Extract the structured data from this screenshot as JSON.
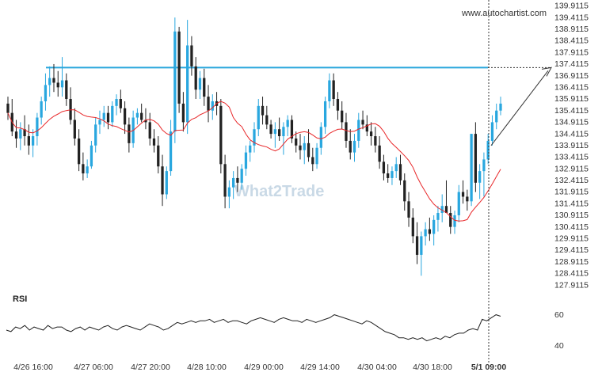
{
  "brand": "www.autochartist.com",
  "watermark": "What2Trade",
  "chart_data": {
    "type": "candlestick",
    "y_ticks": [
      "139.9115",
      "139.4115",
      "138.9115",
      "138.4115",
      "137.9115",
      "137.4115",
      "136.9115",
      "136.4115",
      "135.9115",
      "135.4115",
      "134.9115",
      "134.4115",
      "133.9115",
      "133.4115",
      "132.9115",
      "132.4115",
      "131.9115",
      "131.4115",
      "130.9115",
      "130.4115",
      "129.9115",
      "129.4115",
      "128.9115",
      "128.4115",
      "127.9115"
    ],
    "ylim": [
      127.7,
      139.95
    ],
    "x_ticks": [
      "4/26 16:00",
      "4/27 06:00",
      "4/27 20:00",
      "4/28 10:00",
      "4/29 00:00",
      "4/29 14:00",
      "4/30 04:00",
      "4/30 18:00",
      "5/1 09:00"
    ],
    "resistance_level": 137.25,
    "breakout_marker_label": "5/1 09:00",
    "colors": {
      "up": "#29a7df",
      "down": "#222222",
      "ma": "#e8282a",
      "level": "#2aa6dc",
      "rsi": "#222222"
    },
    "candles_ohlc": [
      [
        135.7,
        136.0,
        135.0,
        135.3
      ],
      [
        135.3,
        135.9,
        134.3,
        134.5
      ],
      [
        134.5,
        135.0,
        133.8,
        134.2
      ],
      [
        134.2,
        134.9,
        133.7,
        134.6
      ],
      [
        134.6,
        135.2,
        133.9,
        134.3
      ],
      [
        134.3,
        134.8,
        133.5,
        133.9
      ],
      [
        133.9,
        134.6,
        133.4,
        134.3
      ],
      [
        134.3,
        135.3,
        133.9,
        135.1
      ],
      [
        135.1,
        136.0,
        134.8,
        135.8
      ],
      [
        135.8,
        137.0,
        135.4,
        136.5
      ],
      [
        136.5,
        137.3,
        136.0,
        136.8
      ],
      [
        136.8,
        137.4,
        136.2,
        136.6
      ],
      [
        136.6,
        137.1,
        136.0,
        136.4
      ],
      [
        136.4,
        137.7,
        136.0,
        136.7
      ],
      [
        136.7,
        137.0,
        135.6,
        135.9
      ],
      [
        135.9,
        136.4,
        134.8,
        135.0
      ],
      [
        135.0,
        135.5,
        133.9,
        134.2
      ],
      [
        134.2,
        134.6,
        132.8,
        133.1
      ],
      [
        133.1,
        133.6,
        132.4,
        132.7
      ],
      [
        132.7,
        133.3,
        132.5,
        133.0
      ],
      [
        133.0,
        134.1,
        132.9,
        133.9
      ],
      [
        133.9,
        135.1,
        133.6,
        134.8
      ],
      [
        134.8,
        135.4,
        134.4,
        135.0
      ],
      [
        135.0,
        135.6,
        134.7,
        135.3
      ],
      [
        135.3,
        135.6,
        134.6,
        134.9
      ],
      [
        134.9,
        135.8,
        134.7,
        135.6
      ],
      [
        135.6,
        136.1,
        135.2,
        135.9
      ],
      [
        135.9,
        136.3,
        135.3,
        135.5
      ],
      [
        135.5,
        135.8,
        134.4,
        134.8
      ],
      [
        134.8,
        135.1,
        133.6,
        134.0
      ],
      [
        134.0,
        135.4,
        133.8,
        135.1
      ],
      [
        135.1,
        135.5,
        134.8,
        135.3
      ],
      [
        135.3,
        135.7,
        134.9,
        135.0
      ],
      [
        135.0,
        135.5,
        134.6,
        134.9
      ],
      [
        134.9,
        135.3,
        133.9,
        134.2
      ],
      [
        134.2,
        134.6,
        133.6,
        133.9
      ],
      [
        133.9,
        134.3,
        132.7,
        133.0
      ],
      [
        133.0,
        133.5,
        131.3,
        131.8
      ],
      [
        131.8,
        133.0,
        131.6,
        132.8
      ],
      [
        132.8,
        135.0,
        132.6,
        134.5
      ],
      [
        134.5,
        139.4,
        134.0,
        138.8
      ],
      [
        138.8,
        139.0,
        135.3,
        135.7
      ],
      [
        135.7,
        136.2,
        134.5,
        134.9
      ],
      [
        134.9,
        139.3,
        134.4,
        138.2
      ],
      [
        138.2,
        138.6,
        136.9,
        137.3
      ],
      [
        137.3,
        137.7,
        135.9,
        136.3
      ],
      [
        136.3,
        137.1,
        135.9,
        136.8
      ],
      [
        136.8,
        137.2,
        135.6,
        136.0
      ],
      [
        136.0,
        136.5,
        134.9,
        135.4
      ],
      [
        135.4,
        136.1,
        135.0,
        135.8
      ],
      [
        135.8,
        136.2,
        135.2,
        135.6
      ],
      [
        135.6,
        135.9,
        132.7,
        133.1
      ],
      [
        133.1,
        133.5,
        131.2,
        131.7
      ],
      [
        131.7,
        132.4,
        131.2,
        132.1
      ],
      [
        132.1,
        132.8,
        131.6,
        132.5
      ],
      [
        132.5,
        133.0,
        131.9,
        132.3
      ],
      [
        132.3,
        133.1,
        132.0,
        132.9
      ],
      [
        132.9,
        133.9,
        132.6,
        133.6
      ],
      [
        133.6,
        134.1,
        133.2,
        133.9
      ],
      [
        133.9,
        134.9,
        133.6,
        134.6
      ],
      [
        134.6,
        135.9,
        134.3,
        135.6
      ],
      [
        135.6,
        136.0,
        134.8,
        135.2
      ],
      [
        135.2,
        135.6,
        134.6,
        134.8
      ],
      [
        134.8,
        135.0,
        134.2,
        134.4
      ],
      [
        134.4,
        134.9,
        133.8,
        134.6
      ],
      [
        134.6,
        135.1,
        134.1,
        134.3
      ],
      [
        134.3,
        134.9,
        133.5,
        134.7
      ],
      [
        134.7,
        135.2,
        134.3,
        135.0
      ],
      [
        135.0,
        135.2,
        134.0,
        134.2
      ],
      [
        134.2,
        134.5,
        133.6,
        133.9
      ],
      [
        133.9,
        134.4,
        133.3,
        133.7
      ],
      [
        133.7,
        134.3,
        133.1,
        134.0
      ],
      [
        134.0,
        134.6,
        133.2,
        133.4
      ],
      [
        133.4,
        133.8,
        132.8,
        133.1
      ],
      [
        133.1,
        134.0,
        132.9,
        133.8
      ],
      [
        133.8,
        134.9,
        133.5,
        134.7
      ],
      [
        134.7,
        136.0,
        134.4,
        135.8
      ],
      [
        135.8,
        137.0,
        135.5,
        136.7
      ],
      [
        136.7,
        137.0,
        135.6,
        135.9
      ],
      [
        135.9,
        136.2,
        135.0,
        135.4
      ],
      [
        135.4,
        135.8,
        134.6,
        134.9
      ],
      [
        134.9,
        135.3,
        133.8,
        134.1
      ],
      [
        134.1,
        134.6,
        133.3,
        133.6
      ],
      [
        133.6,
        134.4,
        133.2,
        134.1
      ],
      [
        134.1,
        135.3,
        133.8,
        135.0
      ],
      [
        135.0,
        135.4,
        134.6,
        134.8
      ],
      [
        134.8,
        135.2,
        134.3,
        134.5
      ],
      [
        134.5,
        134.9,
        133.9,
        134.3
      ],
      [
        134.3,
        134.7,
        133.6,
        133.9
      ],
      [
        133.9,
        134.3,
        132.9,
        133.2
      ],
      [
        133.2,
        133.5,
        132.4,
        132.7
      ],
      [
        132.7,
        133.1,
        132.3,
        132.5
      ],
      [
        132.5,
        133.0,
        132.2,
        132.8
      ],
      [
        132.8,
        133.4,
        132.5,
        133.1
      ],
      [
        133.1,
        133.5,
        132.2,
        132.4
      ],
      [
        132.4,
        132.7,
        131.1,
        131.5
      ],
      [
        131.5,
        131.9,
        130.4,
        130.8
      ],
      [
        130.8,
        131.2,
        129.7,
        130.0
      ],
      [
        130.0,
        130.6,
        128.8,
        129.2
      ],
      [
        129.2,
        130.2,
        128.3,
        130.0
      ],
      [
        130.0,
        130.6,
        129.6,
        130.3
      ],
      [
        130.3,
        130.8,
        129.8,
        130.1
      ],
      [
        130.1,
        130.9,
        129.6,
        130.7
      ],
      [
        130.7,
        131.3,
        130.2,
        131.0
      ],
      [
        131.0,
        131.8,
        130.6,
        131.3
      ],
      [
        131.3,
        132.4,
        131.0,
        131.0
      ],
      [
        131.0,
        131.3,
        130.1,
        130.4
      ],
      [
        130.4,
        131.1,
        130.1,
        130.9
      ],
      [
        130.9,
        132.2,
        130.6,
        131.9
      ],
      [
        131.9,
        132.4,
        131.4,
        131.7
      ],
      [
        131.7,
        132.0,
        131.1,
        131.5
      ],
      [
        131.5,
        134.4,
        131.3,
        134.4
      ],
      [
        134.4,
        134.9,
        131.9,
        132.3
      ],
      [
        132.3,
        133.1,
        131.6,
        132.8
      ],
      [
        132.8,
        133.6,
        131.7,
        133.3
      ],
      [
        133.3,
        134.4,
        133.1,
        134.1
      ],
      [
        134.1,
        135.2,
        133.9,
        134.9
      ],
      [
        134.9,
        135.7,
        134.6,
        135.4
      ],
      [
        135.4,
        136.0,
        135.2,
        135.7
      ]
    ],
    "rsi": {
      "title": "RSI",
      "y_ticks": [
        "60",
        "40"
      ],
      "ylim": [
        32,
        68
      ],
      "values": [
        50,
        49,
        52,
        51,
        53,
        50,
        52,
        51,
        50,
        53,
        51,
        52,
        52,
        50,
        49,
        51,
        52,
        50,
        52,
        51,
        50,
        52,
        53,
        51,
        50,
        52,
        53,
        52,
        51,
        50,
        52,
        54,
        53,
        52,
        50,
        51,
        53,
        55,
        54,
        55,
        56,
        55,
        56,
        56,
        57,
        55,
        56,
        57,
        55,
        56,
        56,
        55,
        54,
        56,
        57,
        58,
        57,
        56,
        55,
        57,
        58,
        57,
        56,
        56,
        55,
        57,
        56,
        55,
        56,
        57,
        58,
        60,
        59,
        58,
        57,
        56,
        55,
        54,
        56,
        55,
        53,
        51,
        49,
        48,
        47,
        45,
        45,
        44,
        45,
        44,
        45,
        43,
        44,
        45,
        44,
        46,
        45,
        47,
        48,
        48,
        50,
        51,
        50,
        57,
        56,
        58,
        60,
        59
      ]
    }
  }
}
